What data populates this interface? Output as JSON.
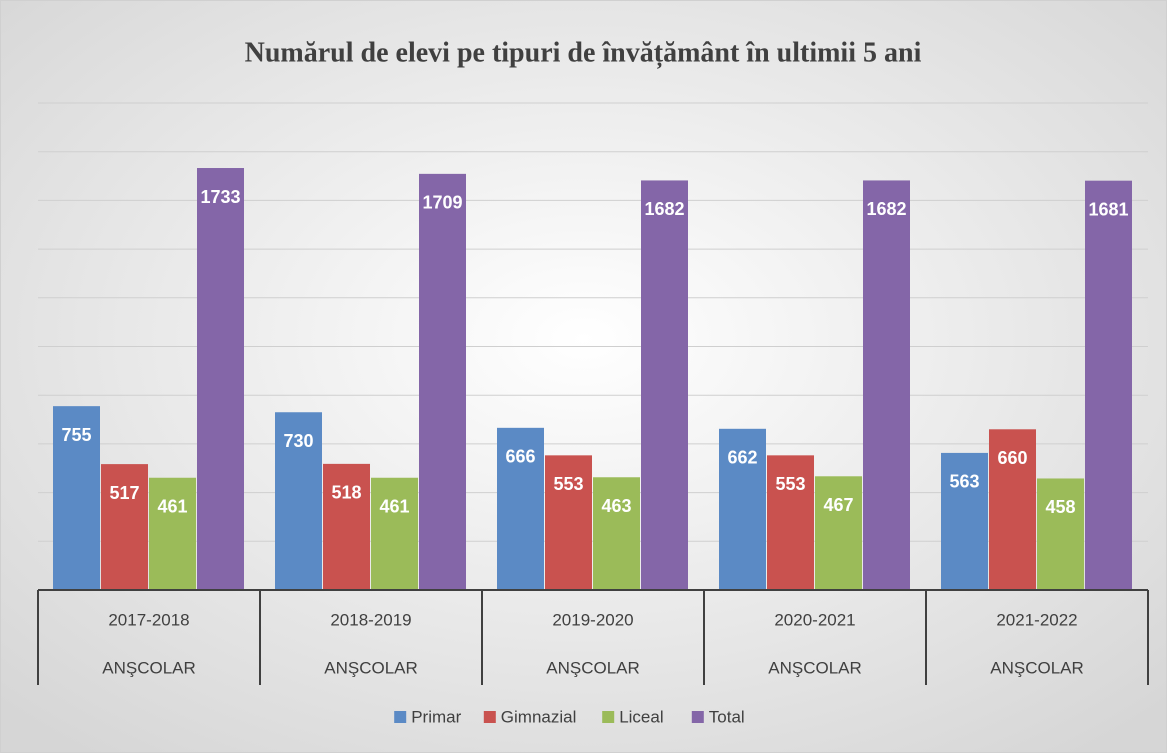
{
  "chart_data": {
    "type": "bar",
    "title": "Numărul de elevi pe tipuri de învățământ în ultimii 5 ani",
    "categories": [
      "2017-2018",
      "2018-2019",
      "2019-2020",
      "2020-2021",
      "2021-2022"
    ],
    "category_sublabels": [
      "ANŞCOLAR",
      "ANŞCOLAR",
      "ANŞCOLAR",
      "ANŞCOLAR",
      "ANŞCOLAR"
    ],
    "series": [
      {
        "name": "Primar",
        "color": "#5b8ac5",
        "values": [
          755,
          730,
          666,
          662,
          563
        ]
      },
      {
        "name": "Gimnazial",
        "color": "#c9524f",
        "values": [
          517,
          518,
          553,
          553,
          660
        ]
      },
      {
        "name": "Liceal",
        "color": "#9bbb59",
        "values": [
          461,
          461,
          463,
          467,
          458
        ]
      },
      {
        "name": "Total",
        "color": "#8466a8",
        "values": [
          1733,
          1709,
          1682,
          1682,
          1681
        ]
      }
    ],
    "ylim": [
      0,
      2000
    ],
    "yticks": [
      0,
      200,
      400,
      600,
      800,
      1000,
      1200,
      1400,
      1600,
      1800,
      2000
    ],
    "grid": true,
    "legend": "bottom"
  }
}
